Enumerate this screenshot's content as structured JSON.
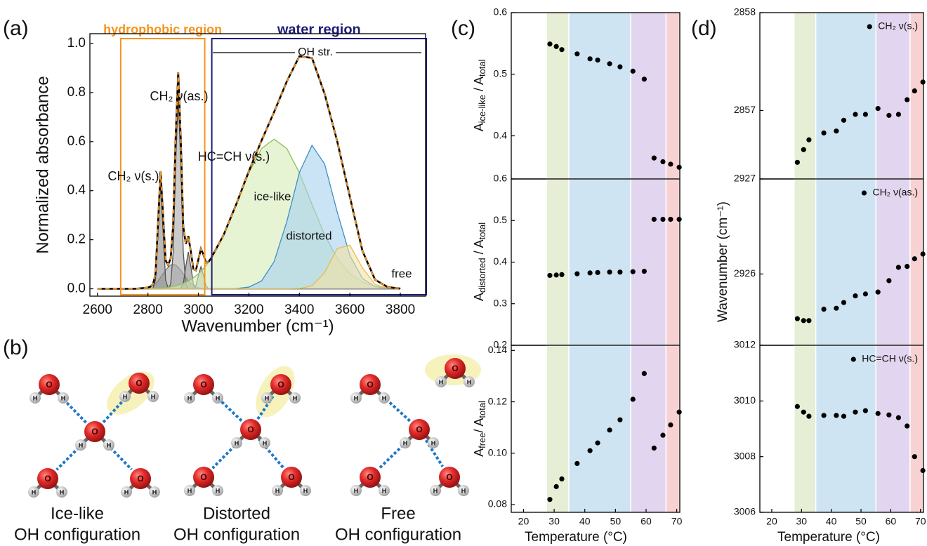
{
  "chart_data": [
    {
      "type": "line",
      "label": "(a)",
      "xlabel": "Wavenumber (cm⁻¹)",
      "ylabel": "Normalized absorbance",
      "x": [
        2600,
        2650,
        2700,
        2750,
        2800,
        2810,
        2820,
        2830,
        2840,
        2850,
        2860,
        2870,
        2880,
        2890,
        2900,
        2910,
        2920,
        2930,
        2940,
        2950,
        2960,
        2970,
        2980,
        2990,
        3000,
        3010,
        3020,
        3030,
        3040,
        3050,
        3100,
        3150,
        3200,
        3250,
        3300,
        3350,
        3400,
        3450,
        3500,
        3550,
        3600,
        3650,
        3700,
        3750,
        3800
      ],
      "series": [
        {
          "color": "#7a7a7a",
          "fill": "#a3a3a3",
          "values": [
            0,
            0,
            0,
            0,
            0.004,
            0.008,
            0.014,
            0.022,
            0.032,
            0.046,
            0.061,
            0.075,
            0.088,
            0.097,
            0.1,
            0.097,
            0.088,
            0.075,
            0.061,
            0.046,
            0.032,
            0.022,
            0.014,
            0.008,
            0.004,
            0.002,
            0.001,
            0,
            0,
            0,
            0,
            0,
            0,
            0,
            0,
            0,
            0,
            0,
            0,
            0,
            0,
            0,
            0,
            0,
            0
          ]
        },
        {
          "color": "#555555",
          "fill": "#8c8c8c",
          "values": [
            0,
            0,
            0,
            0,
            0,
            0,
            0.002,
            0.036,
            0.232,
            0.43,
            0.232,
            0.036,
            0.002,
            0,
            0,
            0,
            0,
            0,
            0,
            0,
            0,
            0,
            0,
            0,
            0,
            0,
            0,
            0,
            0,
            0,
            0,
            0,
            0,
            0,
            0,
            0,
            0,
            0,
            0,
            0,
            0,
            0,
            0,
            0,
            0
          ]
        },
        {
          "color": "#555555",
          "fill": "#a8a8a8",
          "values": [
            0,
            0,
            0,
            0,
            0,
            0,
            0,
            0,
            0,
            0,
            0,
            0,
            0.001,
            0.019,
            0.15,
            0.516,
            0.78,
            0.516,
            0.15,
            0.019,
            0.001,
            0,
            0,
            0,
            0,
            0,
            0,
            0,
            0,
            0,
            0,
            0,
            0,
            0,
            0,
            0,
            0,
            0,
            0,
            0,
            0,
            0,
            0,
            0,
            0
          ]
        },
        {
          "color": "#555555",
          "fill": "#8c8c8c",
          "values": [
            0,
            0,
            0,
            0,
            0,
            0,
            0,
            0,
            0,
            0,
            0,
            0,
            0,
            0,
            0,
            0,
            0,
            0.002,
            0.02,
            0.091,
            0.15,
            0.091,
            0.02,
            0.002,
            0,
            0,
            0,
            0,
            0,
            0,
            0,
            0,
            0,
            0,
            0,
            0,
            0,
            0,
            0,
            0,
            0,
            0,
            0,
            0,
            0
          ]
        },
        {
          "color": "#555555",
          "fill": "#a8a8a8",
          "values": [
            0,
            0,
            0,
            0,
            0,
            0,
            0,
            0,
            0,
            0,
            0,
            0,
            0,
            0,
            0,
            0,
            0,
            0,
            0,
            0,
            0,
            0,
            0.001,
            0.012,
            0.055,
            0.09,
            0.055,
            0.012,
            0.001,
            0,
            0,
            0,
            0,
            0,
            0,
            0,
            0,
            0,
            0,
            0,
            0,
            0,
            0,
            0,
            0
          ]
        },
        {
          "name": "ice-like",
          "color": "#8cc152",
          "fill": "#d6ecb8",
          "values": [
            0,
            0,
            0,
            0,
            0.001,
            0.001,
            0.002,
            0.002,
            0.003,
            0.003,
            0.004,
            0.005,
            0.006,
            0.008,
            0.01,
            0.012,
            0.015,
            0.018,
            0.022,
            0.027,
            0.032,
            0.038,
            0.045,
            0.053,
            0.061,
            0.071,
            0.083,
            0.095,
            0.109,
            0.124,
            0.22,
            0.344,
            0.473,
            0.572,
            0.61,
            0.572,
            0.473,
            0.344,
            0.22,
            0.124,
            0.061,
            0.027,
            0.01,
            0.004,
            0.001
          ]
        },
        {
          "name": "distorted",
          "color": "#3d8fc6",
          "fill": "#a6d1ee",
          "values": [
            0,
            0,
            0,
            0,
            0,
            0,
            0,
            0,
            0,
            0,
            0,
            0,
            0,
            0,
            0,
            0,
            0,
            0,
            0,
            0,
            0,
            0,
            0,
            0,
            0,
            0,
            0,
            0,
            0,
            0,
            0,
            0.001,
            0.007,
            0.032,
            0.111,
            0.273,
            0.474,
            0.585,
            0.509,
            0.313,
            0.136,
            0.042,
            0.009,
            0.001,
            0
          ]
        },
        {
          "name": "free",
          "color": "#e3bd55",
          "fill": "#f4e2a4",
          "values": [
            0,
            0,
            0,
            0,
            0,
            0,
            0,
            0,
            0,
            0,
            0,
            0,
            0,
            0,
            0,
            0,
            0,
            0,
            0,
            0,
            0,
            0,
            0,
            0,
            0,
            0,
            0,
            0,
            0,
            0,
            0,
            0,
            0,
            0,
            0,
            0,
            0.001,
            0.012,
            0.066,
            0.164,
            0.178,
            0.085,
            0.018,
            0.002,
            0
          ]
        },
        {
          "color": "#000000",
          "dash": "#f7941d",
          "values": [
            0,
            0,
            0,
            0,
            0.005,
            0.009,
            0.018,
            0.06,
            0.267,
            0.479,
            0.297,
            0.116,
            0.097,
            0.124,
            0.26,
            0.625,
            0.883,
            0.611,
            0.253,
            0.183,
            0.215,
            0.151,
            0.08,
            0.075,
            0.12,
            0.163,
            0.139,
            0.107,
            0.11,
            0.124,
            0.22,
            0.345,
            0.48,
            0.604,
            0.721,
            0.845,
            0.948,
            0.941,
            0.795,
            0.601,
            0.375,
            0.154,
            0.037,
            0.007,
            0.001
          ]
        }
      ],
      "xlim": [
        2570,
        3900
      ],
      "ylim": [
        -0.03,
        1.04
      ],
      "xticks": [
        2600,
        2800,
        3000,
        3200,
        3400,
        3600,
        3800
      ],
      "yticks": [
        {
          "value": 0,
          "label": "0.0"
        },
        0.2,
        0.4,
        0.6,
        0.8,
        {
          "value": 1,
          "label": "1.0"
        }
      ],
      "regions": [
        {
          "label": "hydrophobic region",
          "xlim": [
            2692,
            3025
          ],
          "color": "#f7931e"
        },
        {
          "label": "water region",
          "xlim": [
            3053,
            3903
          ],
          "color": "#1c1c78"
        }
      ],
      "annotations": [
        "OH str.",
        "CH₂ ν(as.)",
        "CH₂ ν(s.)",
        "HC=CH ν(s.)"
      ],
      "grid": false
    },
    {
      "type": "scatter",
      "label": "(c)",
      "ylabel": [
        "A",
        "ice-like",
        " / A",
        "total"
      ],
      "x": [
        28.6,
        30.7,
        32.5,
        37.5,
        41.7,
        44.2,
        48.1,
        51.5,
        55.7,
        59.4,
        62.6,
        65.5,
        68,
        70.8
      ],
      "series": [
        {
          "color": "#000000",
          "values": [
            0.549,
            0.545,
            0.54,
            0.533,
            0.525,
            0.523,
            0.517,
            0.512,
            0.505,
            0.492,
            0.364,
            0.358,
            0.354,
            0.349
          ]
        }
      ],
      "xlim": [
        16,
        71
      ],
      "ylim": [
        0.33,
        0.6
      ],
      "yticks": [
        0.4,
        0.5,
        0.6
      ],
      "bands": [
        {
          "range": [
            27.5,
            34.8
          ],
          "color": "#e6efd5"
        },
        {
          "range": [
            34.8,
            55
          ],
          "color": "#cfe4f3"
        },
        {
          "range": [
            55,
            66.5
          ],
          "color": "#e2d5ef"
        },
        {
          "range": [
            66.5,
            71
          ],
          "color": "#f8d2d3"
        }
      ]
    },
    {
      "type": "scatter",
      "ylabel": [
        "A",
        "distorted",
        " / A",
        "total"
      ],
      "x": [
        28.6,
        30.7,
        32.5,
        37.5,
        41.7,
        44.2,
        48.1,
        51.5,
        55.7,
        59.4,
        62.6,
        65.5,
        68,
        70.8
      ],
      "series": [
        {
          "color": "#000000",
          "values": [
            0.368,
            0.369,
            0.37,
            0.372,
            0.374,
            0.375,
            0.376,
            0.376,
            0.377,
            0.378,
            0.503,
            0.503,
            0.503,
            0.503
          ]
        }
      ],
      "xlim": [
        16,
        71
      ],
      "ylim": [
        0.2,
        0.6
      ],
      "yticks": [
        0.2,
        0.3,
        0.4,
        0.5,
        0.6
      ],
      "bands": [
        {
          "range": [
            27.5,
            34.8
          ],
          "color": "#e6efd5"
        },
        {
          "range": [
            34.8,
            55
          ],
          "color": "#cfe4f3"
        },
        {
          "range": [
            55,
            66.5
          ],
          "color": "#e2d5ef"
        },
        {
          "range": [
            66.5,
            71
          ],
          "color": "#f8d2d3"
        }
      ]
    },
    {
      "type": "scatter",
      "ylabel": [
        "A",
        "free",
        "/ A",
        "total"
      ],
      "xlabel": "Temperature (°C)",
      "x": [
        28.6,
        30.7,
        32.5,
        37.5,
        41.7,
        44.2,
        48.1,
        51.5,
        55.7,
        59.4,
        62.6,
        65.5,
        68,
        70.8
      ],
      "series": [
        {
          "color": "#000000",
          "values": [
            0.082,
            0.087,
            0.09,
            0.096,
            0.101,
            0.104,
            0.109,
            0.113,
            0.121,
            0.131,
            0.102,
            0.107,
            0.111,
            0.116
          ]
        }
      ],
      "xlim": [
        16,
        71
      ],
      "ylim": [
        0.077,
        0.142
      ],
      "xticks": [
        20,
        30,
        40,
        50,
        60,
        70
      ],
      "yticks": [
        0.08,
        {
          "value": 0.1,
          "label": "0.10"
        },
        0.12,
        0.14
      ],
      "bands": [
        {
          "range": [
            27.5,
            34.8
          ],
          "color": "#e6efd5"
        },
        {
          "range": [
            34.8,
            55
          ],
          "color": "#cfe4f3"
        },
        {
          "range": [
            55,
            66.5
          ],
          "color": "#e2d5ef"
        },
        {
          "range": [
            66.5,
            71
          ],
          "color": "#f8d2d3"
        }
      ]
    },
    {
      "type": "scatter",
      "label": "(d)",
      "x": [
        28.6,
        30.7,
        32.5,
        37.5,
        41.7,
        44.2,
        48.1,
        51.5,
        55.7,
        59.4,
        62.6,
        65.5,
        68,
        70.8
      ],
      "series": [
        {
          "name": "CH₂ ν(s.)",
          "color": "#000000",
          "values": [
            2856.47,
            2856.6,
            2856.7,
            2856.77,
            2856.79,
            2856.9,
            2856.96,
            2856.96,
            2857.02,
            2856.95,
            2856.96,
            2857.11,
            2857.2,
            2857.29
          ]
        }
      ],
      "xlim": [
        16,
        71
      ],
      "ylim": [
        2856.3,
        2858
      ],
      "yticks": [
        2857,
        2858
      ],
      "legend": "upper right",
      "bands": [
        {
          "range": [
            27.5,
            34.8
          ],
          "color": "#e6efd5"
        },
        {
          "range": [
            34.8,
            55
          ],
          "color": "#cfe4f3"
        },
        {
          "range": [
            55,
            66.5
          ],
          "color": "#e2d5ef"
        },
        {
          "range": [
            66.5,
            71
          ],
          "color": "#f8d2d3"
        }
      ]
    },
    {
      "type": "scatter",
      "ylabel": "Wavenumber (cm⁻¹)",
      "x": [
        28.6,
        30.7,
        32.5,
        37.5,
        41.7,
        44.2,
        48.1,
        51.5,
        55.7,
        59.4,
        62.6,
        65.5,
        68,
        70.8
      ],
      "series": [
        {
          "name": "CH₂ ν(as.)",
          "color": "#000000",
          "values": [
            2925.53,
            2925.51,
            2925.51,
            2925.63,
            2925.64,
            2925.7,
            2925.77,
            2925.79,
            2925.81,
            2925.93,
            2926.07,
            2926.08,
            2926.16,
            2926.21
          ]
        }
      ],
      "xlim": [
        16,
        71
      ],
      "ylim": [
        2925.25,
        2927
      ],
      "yticks": [
        2926,
        2927
      ],
      "legend": "upper right",
      "bands": [
        {
          "range": [
            27.5,
            34.8
          ],
          "color": "#e6efd5"
        },
        {
          "range": [
            34.8,
            55
          ],
          "color": "#cfe4f3"
        },
        {
          "range": [
            55,
            66.5
          ],
          "color": "#e2d5ef"
        },
        {
          "range": [
            66.5,
            71
          ],
          "color": "#f8d2d3"
        }
      ]
    },
    {
      "type": "scatter",
      "xlabel": "Temperature (°C)",
      "x": [
        28.6,
        30.7,
        32.5,
        37.5,
        41.7,
        44.2,
        48.1,
        51.5,
        55.7,
        59.4,
        62.6,
        65.5,
        68,
        70.8
      ],
      "series": [
        {
          "name": "HC=CH ν(s.)",
          "color": "#000000",
          "values": [
            3009.8,
            3009.6,
            3009.45,
            3009.48,
            3009.48,
            3009.45,
            3009.6,
            3009.65,
            3009.55,
            3009.5,
            3009.4,
            3009.1,
            3008,
            3007.5
          ]
        }
      ],
      "xlim": [
        16,
        71
      ],
      "ylim": [
        3006,
        3012
      ],
      "xticks": [
        20,
        30,
        40,
        50,
        60,
        70
      ],
      "yticks": [
        3006,
        3008,
        3010,
        3012
      ],
      "legend": "upper right",
      "bands": [
        {
          "range": [
            27.5,
            34.8
          ],
          "color": "#e6efd5"
        },
        {
          "range": [
            34.8,
            55
          ],
          "color": "#cfe4f3"
        },
        {
          "range": [
            55,
            66.5
          ],
          "color": "#e2d5ef"
        },
        {
          "range": [
            66.5,
            71
          ],
          "color": "#f8d2d3"
        }
      ]
    }
  ],
  "diagram": {
    "label": "(b)",
    "atoms": {
      "oxygen": "O",
      "hydrogen": "H"
    },
    "configurations": [
      {
        "name": "Ice-like",
        "caption": "OH configuration"
      },
      {
        "name": "Distorted",
        "caption": "OH configuration"
      },
      {
        "name": "Free",
        "caption": "OH configuration"
      }
    ]
  }
}
